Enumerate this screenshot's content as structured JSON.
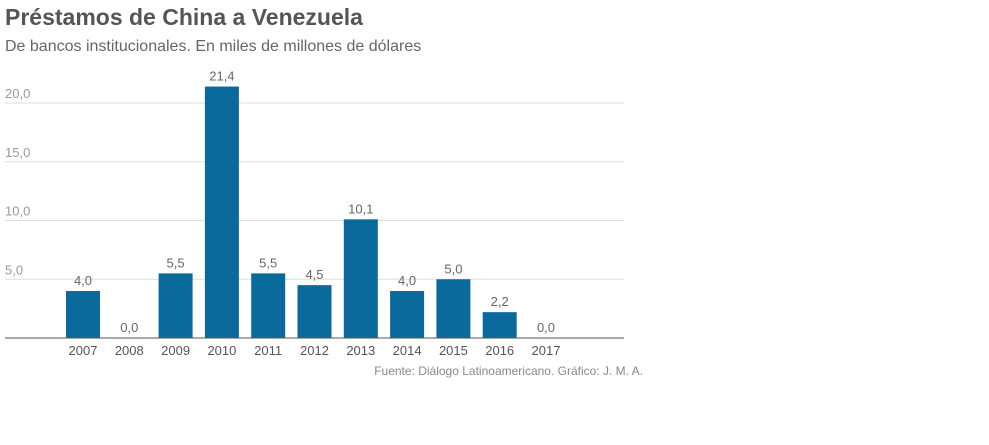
{
  "chart_data": {
    "type": "bar",
    "title": "Préstamos de China a Venezuela",
    "subtitle": "De bancos institucionales. En miles de millones de dólares",
    "categories": [
      "2007",
      "2008",
      "2009",
      "2010",
      "2011",
      "2012",
      "2013",
      "2014",
      "2015",
      "2016",
      "2017"
    ],
    "values": [
      4.0,
      0.0,
      5.5,
      21.4,
      5.5,
      4.5,
      10.1,
      4.0,
      5.0,
      2.2,
      0.0
    ],
    "value_labels": [
      "4,0",
      "0,0",
      "5,5",
      "21,4",
      "5,5",
      "4,5",
      "10,1",
      "4,0",
      "5,0",
      "2,2",
      "0,0"
    ],
    "yticks": [
      5,
      10,
      15,
      20
    ],
    "ytick_labels": [
      "5,0",
      "10,0",
      "15,0",
      "20,0"
    ],
    "ylim": [
      0,
      20
    ],
    "grid": true,
    "xlabel": "",
    "ylabel": "",
    "bar_color": "#0b6a9c",
    "source": "Fuente: Diálogo Latinoamericano. Gráfico: J. M. A."
  }
}
